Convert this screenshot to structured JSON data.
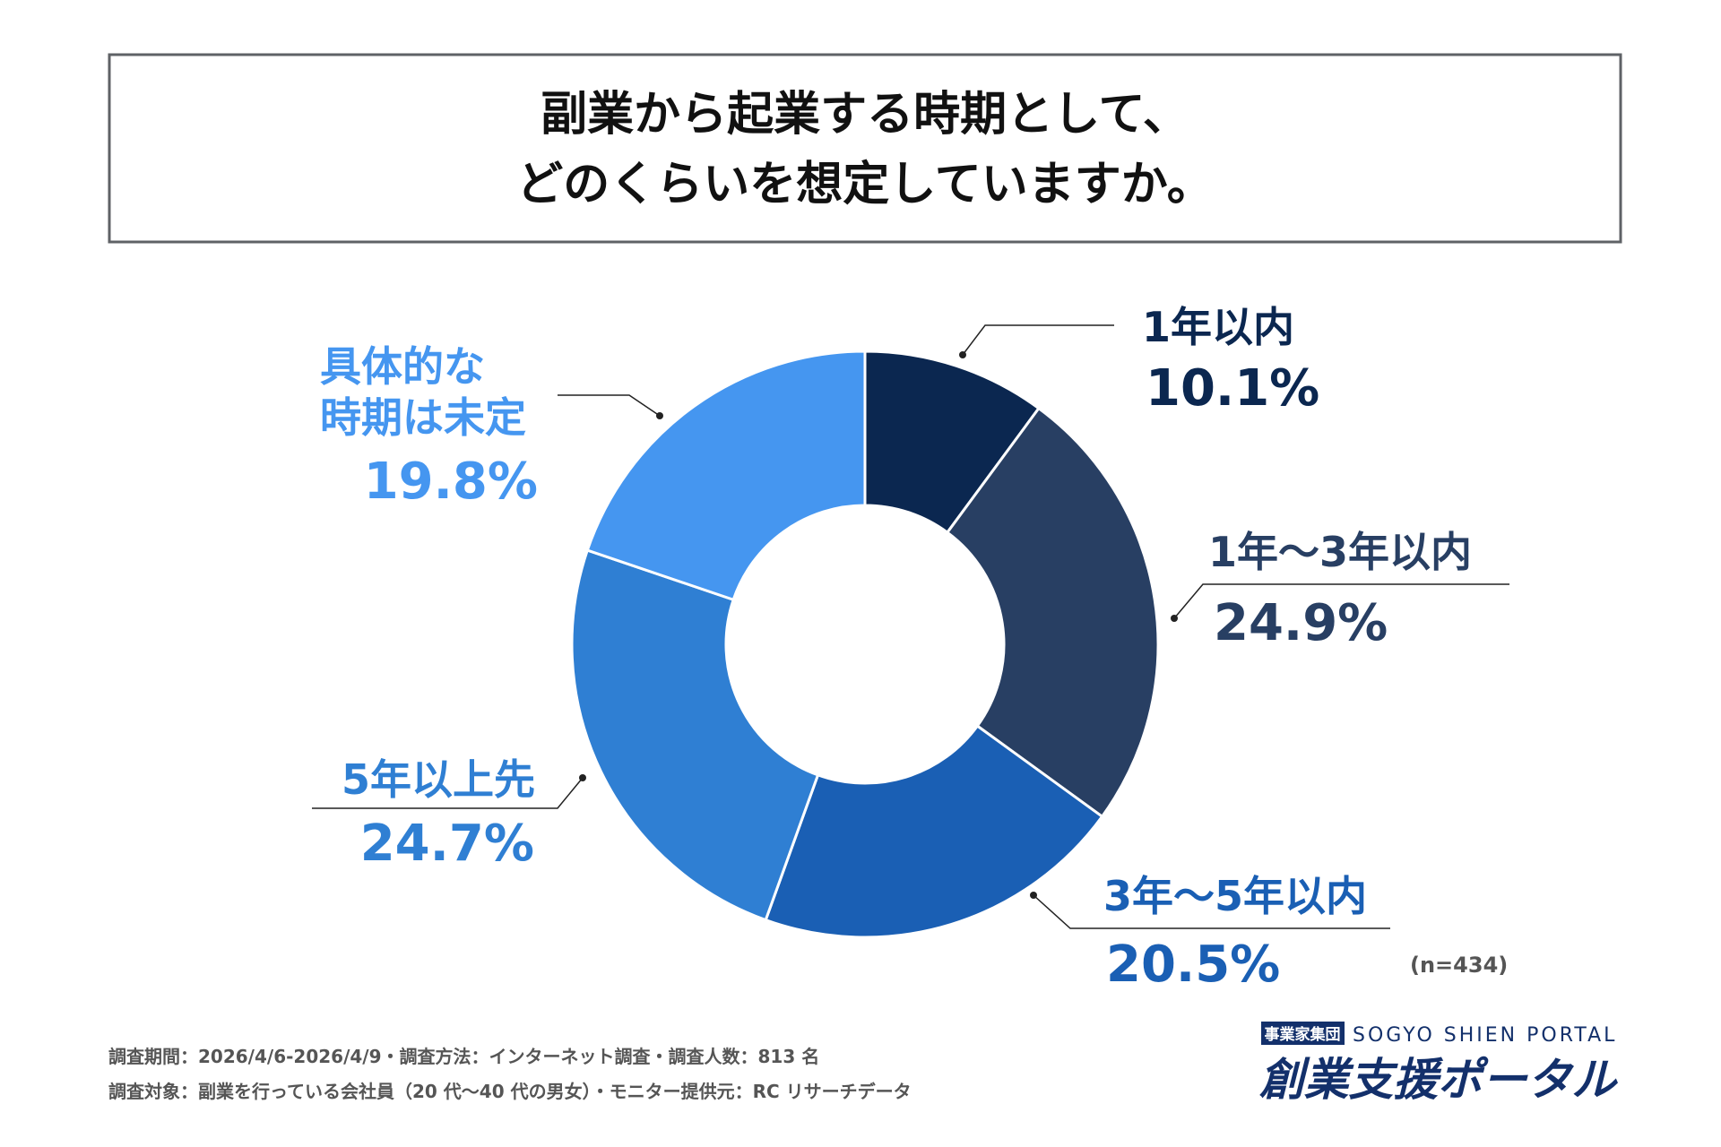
{
  "title": {
    "line1": "副業から起業する時期として、",
    "line2": "どのくらいを想定していますか。"
  },
  "chart_data": {
    "type": "pie",
    "donut": true,
    "categories": [
      "1年以内",
      "1年〜3年以内",
      "3年〜5年以内",
      "5年以上先",
      "具体的な時期は未定"
    ],
    "values": [
      10.1,
      24.9,
      20.5,
      24.7,
      19.8
    ],
    "value_labels": [
      "10.1%",
      "24.9%",
      "20.5%",
      "24.7%",
      "19.8%"
    ],
    "colors": [
      "#0b2750",
      "#283f63",
      "#1a5fb4",
      "#2f7fd3",
      "#4596f0"
    ],
    "label_colors": [
      "#0b2750",
      "#283f63",
      "#1a5fb4",
      "#2f7fd3",
      "#4596f0"
    ],
    "unit": "%",
    "sample_size": "(n=434)",
    "extra_labels": {
      "undecided_line1": "具体的な",
      "undecided_line2": "時期は未定"
    }
  },
  "footer": {
    "line1": "調査期間：2026/4/6-2026/4/9・調査方法：インターネット調査・調査人数：813 名",
    "line2": "調査対象：副業を行っている会社員（20 代〜40 代の男女）・モニター提供元：RC リサーチデータ"
  },
  "logo": {
    "group": "事業家集団",
    "english": "SOGYO SHIEN PORTAL",
    "japanese": "創業支援ポータル",
    "color": "#13306b"
  }
}
